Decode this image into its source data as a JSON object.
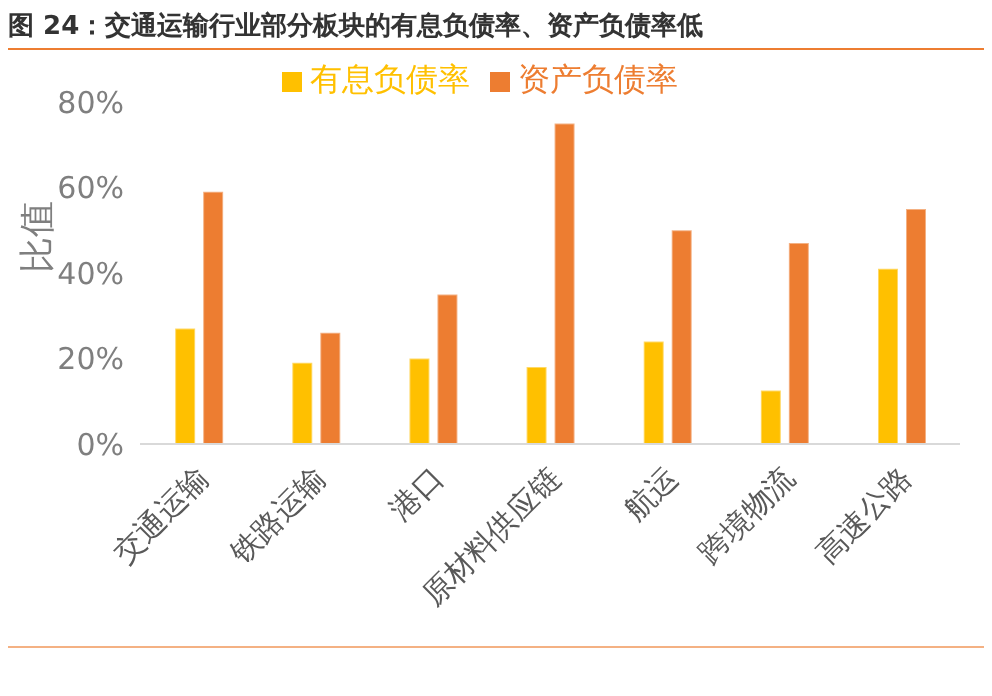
{
  "chart_data": {
    "type": "bar",
    "title": "图 24：交通运输行业部分板块的有息负债率、资产负债率低",
    "ylabel": "比值",
    "categories": [
      "交通运输",
      "铁路运输",
      "港口",
      "原材料供应链",
      "航运",
      "跨境物流",
      "高速公路"
    ],
    "series": [
      {
        "name": "有息负债率",
        "color": "#ffc000",
        "values": [
          27,
          19,
          20,
          18,
          24,
          12.5,
          41
        ]
      },
      {
        "name": "资产负债率",
        "color": "#ed7d31",
        "values": [
          59,
          26,
          35,
          75,
          50,
          47,
          55
        ]
      }
    ],
    "ylim": [
      0,
      80
    ],
    "yticks": [
      {
        "value": 0,
        "label": "0%"
      },
      {
        "value": 20,
        "label": "20%"
      },
      {
        "value": 40,
        "label": "40%"
      },
      {
        "value": 60,
        "label": "60%"
      },
      {
        "value": 80,
        "label": "80%"
      }
    ],
    "grid": false,
    "legend": "top"
  }
}
